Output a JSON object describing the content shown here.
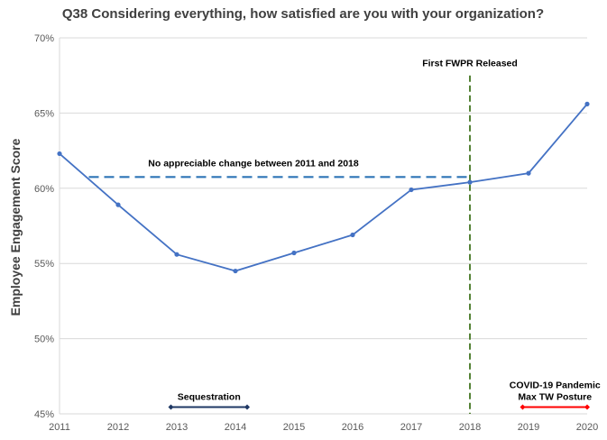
{
  "chart_data": {
    "type": "line",
    "title": "Q38 Considering everything, how satisfied are you with your organization?",
    "ylabel": "Employee Engagement Score",
    "xlabel": "",
    "ylim": [
      45,
      70
    ],
    "yticks": [
      45,
      50,
      55,
      60,
      65,
      70
    ],
    "ytick_labels": [
      "45%",
      "50%",
      "55%",
      "60%",
      "65%",
      "70%"
    ],
    "xlim": [
      2011,
      2020
    ],
    "x": [
      2011,
      2012,
      2013,
      2014,
      2015,
      2016,
      2017,
      2018,
      2019,
      2020
    ],
    "x_labels": [
      "2011",
      "2012",
      "2013",
      "2014",
      "2015",
      "2016",
      "2017",
      "2018",
      "2019",
      "2020"
    ],
    "series": [
      {
        "values": [
          62.3,
          58.9,
          55.6,
          54.5,
          55.7,
          56.9,
          59.9,
          60.4,
          61.0,
          65.6
        ],
        "color": "#4472C4"
      }
    ],
    "grid": {
      "horizontal": true,
      "vertical": false
    },
    "annotations": {
      "reference_line": {
        "y": 60.75,
        "x_from": 2011.5,
        "x_to": 2018.0,
        "color": "#2E75B6",
        "text": "No appreciable change between 2011 and 2018"
      },
      "event_line": {
        "x": 2018,
        "color": "#548235",
        "text": "First FWPR Released"
      },
      "ranges": [
        {
          "x_from": 2012.9,
          "x_to": 2014.2,
          "color": "#1F3864",
          "lines": [
            "Sequestration"
          ]
        },
        {
          "x_from": 2018.9,
          "x_to": 2020.0,
          "color": "#FF0000",
          "lines": [
            "COVID-19 Pandemic",
            "Max TW Posture"
          ]
        }
      ]
    }
  }
}
